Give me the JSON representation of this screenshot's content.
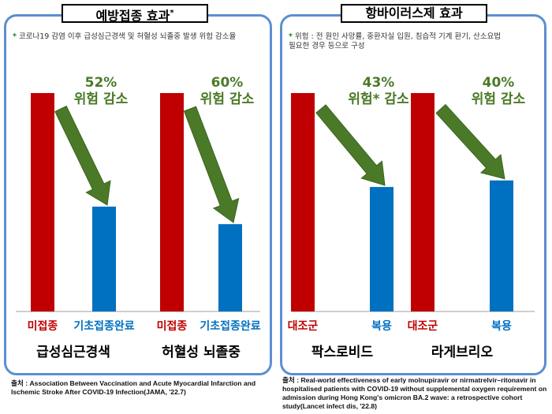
{
  "colors": {
    "red": "#c00000",
    "blue": "#0070c0",
    "green": "#4a7a27",
    "border": "#5b8fd0"
  },
  "left": {
    "title": "예방접종 효과",
    "title_mark": "*",
    "note": "코로나19 감염 이후 급성심근경색 및 허혈성 뇌졸중 발생 위험 감소율",
    "source_label": "출처",
    "source_text": " : Association Between Vaccination and Acute Myocardial Infarction and Ischemic Stroke After COVID-19 Infection(JAMA, '22.7)"
  },
  "right": {
    "title": "항바이러스제 효과",
    "note": "위험 : 전 원인 사망률, 중환자실 입원, 침습적 기계 환기, 산소요법 필요한 경우 등으로 구성",
    "source_label": "출처",
    "source_text": " : Real-world effectiveness of early molnupiravir or nirmatrelvir–ritonavir in hospitalised patients with COVID-19 without supplemental oxygen requirement on admission during Hong Kong's omicron BA.2 wave: a retrospective cohort study(Lancet infect dis, '22.8)"
  },
  "chart_data": [
    {
      "type": "bar",
      "title": "예방접종 효과",
      "ylim": [
        0,
        100
      ],
      "groups": [
        {
          "label": "급성심근경색",
          "categories": [
            "미접종",
            "기초접종완료"
          ],
          "values": [
            100,
            48
          ],
          "reduction_pct": "52%",
          "reduction_text": "위험 감소"
        },
        {
          "label": "허혈성 뇌졸중",
          "categories": [
            "미접종",
            "기초접종완료"
          ],
          "values": [
            100,
            40
          ],
          "reduction_pct": "60%",
          "reduction_text": "위험 감소"
        }
      ]
    },
    {
      "type": "bar",
      "title": "항바이러스제 효과",
      "ylim": [
        0,
        100
      ],
      "groups": [
        {
          "label": "팍스로비드",
          "categories": [
            "대조군",
            "복용"
          ],
          "values": [
            100,
            57
          ],
          "reduction_pct": "43%",
          "reduction_text": "위험* 감소"
        },
        {
          "label": "라게브리오",
          "categories": [
            "대조군",
            "복용"
          ],
          "values": [
            100,
            60
          ],
          "reduction_pct": "40%",
          "reduction_text": "위험 감소"
        }
      ]
    }
  ]
}
